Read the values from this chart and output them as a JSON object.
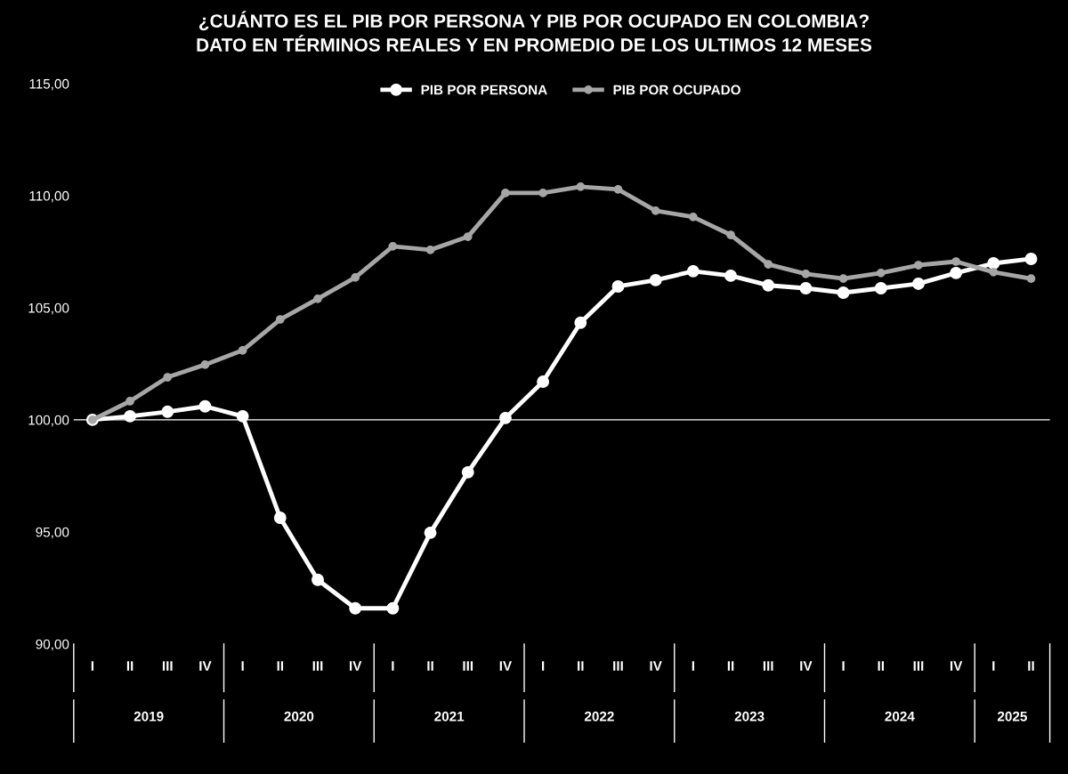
{
  "chart_data": {
    "type": "line",
    "title": "¿CUÁNTO ES EL PIB POR PERSONA Y PIB POR OCUPADO EN COLOMBIA?\nDATO EN TÉRMINOS REALES Y EN PROMEDIO DE LOS ULTIMOS 12 MESES",
    "categories": [
      "I",
      "II",
      "III",
      "IV",
      "I",
      "II",
      "III",
      "IV",
      "I",
      "II",
      "III",
      "IV",
      "I",
      "II",
      "III",
      "IV",
      "I",
      "II",
      "III",
      "IV",
      "I",
      "II",
      "III",
      "IV",
      "I",
      "II"
    ],
    "annotations": [
      "2019",
      "2020",
      "2021",
      "2022",
      "2023",
      "2024",
      "2025"
    ],
    "series": [
      {
        "name": "PIB POR PERSONA",
        "color": "#ffffff",
        "values": [
          100.0,
          100.16,
          100.36,
          100.6,
          100.16,
          95.63,
          92.86,
          91.59,
          91.59,
          94.96,
          97.66,
          100.08,
          101.7,
          104.33,
          105.95,
          106.23,
          106.63,
          106.43,
          106.0,
          105.87,
          105.67,
          105.87,
          106.07,
          106.55,
          106.98,
          107.18
        ]
      },
      {
        "name": "PIB POR OCUPADO",
        "color": "#a6a6a6",
        "values": [
          100.0,
          100.83,
          101.9,
          102.46,
          103.1,
          104.48,
          105.4,
          106.35,
          107.74,
          107.58,
          108.17,
          110.12,
          110.12,
          110.4,
          110.28,
          109.33,
          109.05,
          108.25,
          106.94,
          106.51,
          106.3,
          106.55,
          106.9,
          107.06,
          106.59,
          106.3
        ]
      }
    ],
    "ylim": [
      90,
      115
    ],
    "yticks": [
      {
        "value": 90,
        "label": "90,00"
      },
      {
        "value": 95,
        "label": "95,00"
      },
      {
        "value": 100,
        "label": "100,00"
      },
      {
        "value": 105,
        "label": "105,00"
      },
      {
        "value": 110,
        "label": "110,00"
      },
      {
        "value": 115,
        "label": "115,00"
      }
    ],
    "ref_lines": [
      {
        "axis": "y",
        "value": 100,
        "color": "#ffffff"
      }
    ],
    "legend": "top",
    "marker": "circle",
    "line_style": "solid",
    "grid": false
  }
}
